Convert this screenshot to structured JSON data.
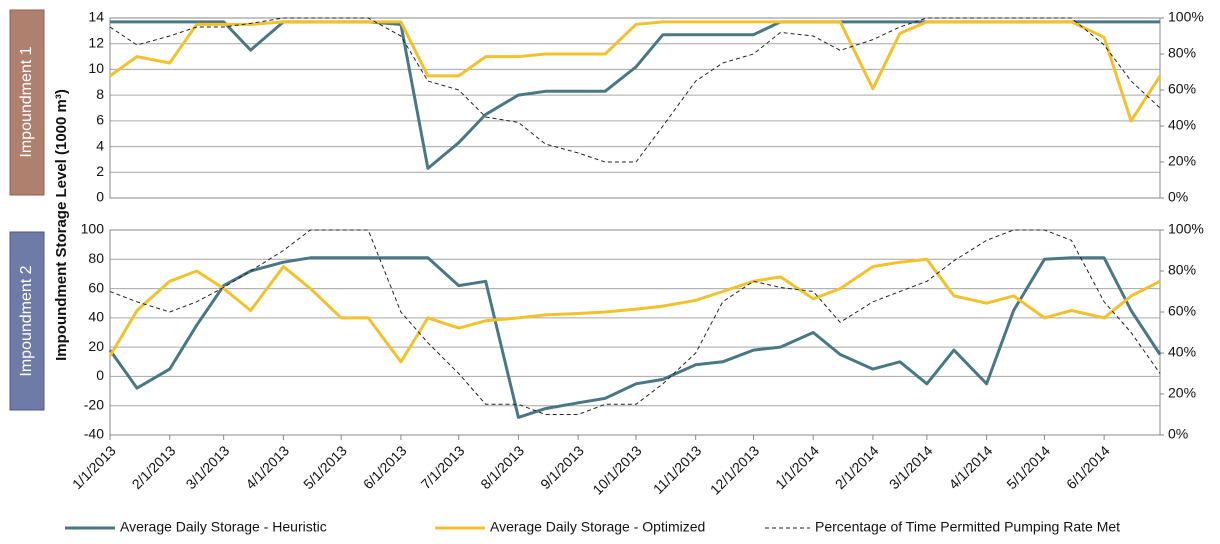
{
  "chart_data": [
    {
      "type": "line",
      "title": "Impoundment 1",
      "ylabel": "Impoundment Storage Level (1000 m³)",
      "x": [
        "1/1/2013",
        "1/15/2013",
        "2/1/2013",
        "2/15/2013",
        "3/1/2013",
        "3/15/2013",
        "4/1/2013",
        "4/15/2013",
        "5/1/2013",
        "5/15/2013",
        "6/1/2013",
        "6/15/2013",
        "7/1/2013",
        "7/15/2013",
        "8/1/2013",
        "8/15/2013",
        "9/1/2013",
        "9/15/2013",
        "10/1/2013",
        "10/15/2013",
        "11/1/2013",
        "11/15/2013",
        "12/1/2013",
        "12/15/2013",
        "1/1/2014",
        "1/15/2014",
        "2/1/2014",
        "2/15/2014",
        "3/1/2014",
        "3/15/2014",
        "4/1/2014",
        "4/15/2014",
        "5/1/2014",
        "5/15/2014",
        "6/1/2014",
        "6/15/2014",
        "6/30/2014"
      ],
      "xlim": [
        "1/1/2013",
        "6/30/2014"
      ],
      "ylim": [
        0,
        14
      ],
      "yticks": [
        0,
        2,
        4,
        6,
        8,
        10,
        12,
        14
      ],
      "y2lim": [
        0,
        100
      ],
      "y2ticks": [
        {
          "value": 0,
          "label": "0%"
        },
        {
          "value": 20,
          "label": "20%"
        },
        {
          "value": 40,
          "label": "40%"
        },
        {
          "value": 60,
          "label": "60%"
        },
        {
          "value": 80,
          "label": "80%"
        },
        {
          "value": 100,
          "label": "100%"
        }
      ],
      "grid": true,
      "series": [
        {
          "name": "Average Daily Storage - Heuristic",
          "color": "#4a7785",
          "values": [
            13.7,
            13.7,
            13.7,
            13.7,
            13.7,
            11.5,
            13.7,
            13.7,
            13.7,
            13.7,
            13.5,
            2.3,
            4.3,
            6.5,
            8.0,
            8.3,
            8.3,
            8.3,
            10.2,
            12.7,
            12.7,
            12.7,
            12.7,
            13.7,
            13.7,
            13.7,
            13.7,
            13.7,
            13.7,
            13.7,
            13.7,
            13.7,
            13.7,
            13.7,
            13.7,
            13.7,
            13.7
          ]
        },
        {
          "name": "Average Daily Storage - Optimized",
          "color": "#f2c12e",
          "values": [
            9.5,
            11,
            10.5,
            13.5,
            13.5,
            13.5,
            13.7,
            13.7,
            13.7,
            13.7,
            13.7,
            9.5,
            9.5,
            11,
            11,
            11.2,
            11.2,
            11.2,
            13.5,
            13.7,
            13.7,
            13.7,
            13.7,
            13.7,
            13.7,
            13.7,
            8.5,
            12.8,
            13.7,
            13.7,
            13.7,
            13.7,
            13.7,
            13.7,
            12.5,
            6.0,
            9.5
          ]
        },
        {
          "name": "Percentage of Time Permitted Pumping Rate Met",
          "color": "#222222",
          "axis": "y2",
          "values": [
            95,
            85,
            90,
            95,
            95,
            97,
            100,
            100,
            100,
            100,
            90,
            65,
            60,
            45,
            42,
            30,
            25,
            20,
            20,
            40,
            65,
            75,
            80,
            92,
            90,
            82,
            88,
            95,
            100,
            100,
            100,
            100,
            100,
            100,
            85,
            65,
            50
          ]
        }
      ]
    },
    {
      "type": "line",
      "title": "Impoundment 2",
      "x": [
        "1/1/2013",
        "1/15/2013",
        "2/1/2013",
        "2/15/2013",
        "3/1/2013",
        "3/15/2013",
        "4/1/2013",
        "4/15/2013",
        "5/1/2013",
        "5/15/2013",
        "6/1/2013",
        "6/15/2013",
        "7/1/2013",
        "7/15/2013",
        "8/1/2013",
        "8/15/2013",
        "9/1/2013",
        "9/15/2013",
        "10/1/2013",
        "10/15/2013",
        "11/1/2013",
        "11/15/2013",
        "12/1/2013",
        "12/15/2013",
        "1/1/2014",
        "1/15/2014",
        "2/1/2014",
        "2/15/2014",
        "3/1/2014",
        "3/15/2014",
        "4/1/2014",
        "4/15/2014",
        "5/1/2014",
        "5/15/2014",
        "6/1/2014",
        "6/15/2014",
        "6/30/2014"
      ],
      "xlim": [
        "1/1/2013",
        "6/30/2014"
      ],
      "xticks": [
        "1/1/2013",
        "2/1/2013",
        "3/1/2013",
        "4/1/2013",
        "5/1/2013",
        "6/1/2013",
        "7/1/2013",
        "8/1/2013",
        "9/1/2013",
        "10/1/2013",
        "11/1/2013",
        "12/1/2013",
        "1/1/2014",
        "2/1/2014",
        "3/1/2014",
        "4/1/2014",
        "5/1/2014",
        "6/1/2014"
      ],
      "ylim": [
        -40,
        100
      ],
      "yticks": [
        -40,
        -20,
        0,
        20,
        40,
        60,
        80,
        100
      ],
      "y2lim": [
        0,
        100
      ],
      "y2ticks": [
        {
          "value": 0,
          "label": "0%"
        },
        {
          "value": 20,
          "label": "20%"
        },
        {
          "value": 40,
          "label": "40%"
        },
        {
          "value": 60,
          "label": "60%"
        },
        {
          "value": 80,
          "label": "80%"
        },
        {
          "value": 100,
          "label": "100%"
        }
      ],
      "grid": true,
      "series": [
        {
          "color": "#4a7785",
          "values": [
            18,
            -8,
            5,
            35,
            62,
            72,
            78,
            81,
            81,
            81,
            81,
            81,
            62,
            65,
            -28,
            -22,
            -18,
            -15,
            -5,
            -2,
            8,
            10,
            18,
            20,
            30,
            15,
            5,
            10,
            -5,
            18,
            -5,
            45,
            80,
            81,
            81,
            45,
            15
          ]
        },
        {
          "color": "#f2c12e",
          "values": [
            14,
            45,
            65,
            72,
            60,
            45,
            75,
            60,
            40,
            40,
            10,
            40,
            33,
            38,
            40,
            42,
            43,
            44,
            46,
            48,
            52,
            58,
            65,
            68,
            53,
            60,
            75,
            78,
            80,
            55,
            50,
            55,
            40,
            45,
            40,
            55,
            65
          ]
        },
        {
          "color": "#222222",
          "axis": "y2",
          "values": [
            70,
            65,
            60,
            65,
            72,
            80,
            90,
            100,
            100,
            100,
            60,
            45,
            30,
            15,
            15,
            10,
            10,
            15,
            15,
            25,
            40,
            65,
            75,
            72,
            70,
            55,
            65,
            70,
            75,
            85,
            95,
            100,
            100,
            95,
            65,
            50,
            30
          ]
        }
      ]
    }
  ]
}
